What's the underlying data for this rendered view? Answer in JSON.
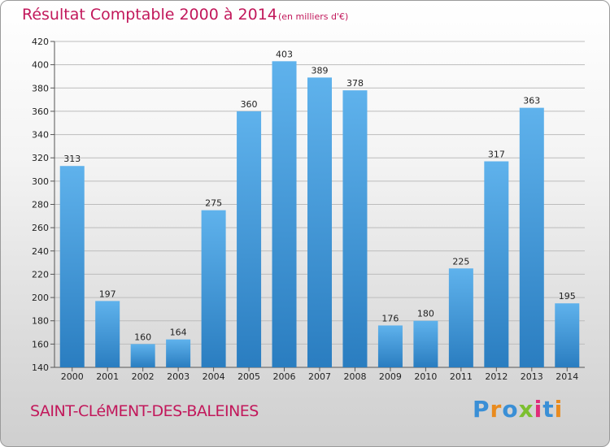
{
  "header": {
    "title": "Résultat Comptable 2000 à 2014",
    "subtitle": "(en milliers d'€)"
  },
  "footer": {
    "commune": "SAINT-CLéMENT-DES-BALEINES",
    "logo": [
      "P",
      "r",
      "o",
      "x",
      "i",
      "t",
      "i"
    ],
    "logo_colors": [
      "#3a8fd6",
      "#e98b1e",
      "#3a8fd6",
      "#7cbf2f",
      "#e02b7a",
      "#3a8fd6",
      "#e98b1e"
    ]
  },
  "colors": {
    "bar_top": "#5fb2ec",
    "bar_bottom": "#2a7dc0",
    "grid": "#bcbcbc",
    "title": "#c2185b"
  },
  "chart_data": {
    "type": "bar",
    "title": "Résultat Comptable 2000 à 2014",
    "xlabel": "",
    "ylabel": "",
    "categories": [
      "2000",
      "2001",
      "2002",
      "2003",
      "2004",
      "2005",
      "2006",
      "2007",
      "2008",
      "2009",
      "2010",
      "2011",
      "2012",
      "2013",
      "2014"
    ],
    "values": [
      313,
      197,
      160,
      164,
      275,
      360,
      403,
      389,
      378,
      176,
      180,
      225,
      317,
      363,
      195
    ],
    "ylim": [
      140,
      420
    ],
    "yticks": [
      140,
      160,
      180,
      200,
      220,
      240,
      260,
      280,
      300,
      320,
      340,
      360,
      380,
      400,
      420
    ],
    "grid": true
  }
}
